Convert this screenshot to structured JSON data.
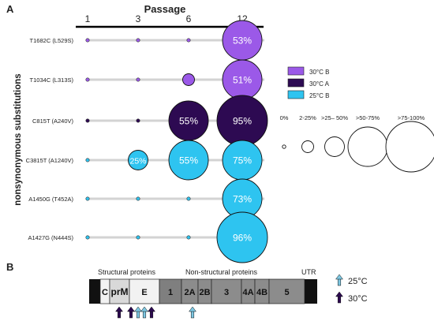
{
  "panel_a": {
    "label": "A",
    "axis_title": "Passage",
    "passages": [
      "1",
      "3",
      "6",
      "12"
    ],
    "y_axis_title": "nonsynonymous substitutions",
    "rows": [
      {
        "label": "T1682C (L529S)",
        "cells": [
          {
            "passage": "1",
            "bin": "0%",
            "group": "30°C B"
          },
          {
            "passage": "3",
            "bin": "0%",
            "group": "30°C B"
          },
          {
            "passage": "6",
            "bin": "0%",
            "group": "30°C B"
          },
          {
            "passage": "12",
            "bin": ">50-75%",
            "group": "30°C B",
            "value": "53%"
          }
        ]
      },
      {
        "label": "T1034C (L313S)",
        "cells": [
          {
            "passage": "1",
            "bin": "0%",
            "group": "30°C B"
          },
          {
            "passage": "3",
            "bin": "0%",
            "group": "30°C B"
          },
          {
            "passage": "6",
            "bin": "2-25%",
            "group": "30°C B"
          },
          {
            "passage": "12",
            "bin": ">50-75%",
            "group": "30°C B",
            "value": "51%"
          }
        ]
      },
      {
        "label": "C815T (A240V)",
        "cells": [
          {
            "passage": "1",
            "bin": "0%",
            "group": "30°C A"
          },
          {
            "passage": "3",
            "bin": "0%",
            "group": "30°C A"
          },
          {
            "passage": "6",
            "bin": ">50-75%",
            "group": "30°C A",
            "value": "55%"
          },
          {
            "passage": "12",
            "bin": ">75-100%",
            "group": "30°C A",
            "value": "95%"
          }
        ]
      },
      {
        "label": "C3815T (A1240V)",
        "cells": [
          {
            "passage": "1",
            "bin": "0%",
            "group": "25°C B"
          },
          {
            "passage": "3",
            "bin": ">25– 50%",
            "group": "25°C B",
            "value": "25%"
          },
          {
            "passage": "6",
            "bin": ">50-75%",
            "group": "25°C B",
            "value": "55%"
          },
          {
            "passage": "12",
            "bin": ">50-75%",
            "group": "25°C B",
            "value": "75%"
          }
        ]
      },
      {
        "label": "A1450G (T452A)",
        "cells": [
          {
            "passage": "1",
            "bin": "0%",
            "group": "25°C B"
          },
          {
            "passage": "3",
            "bin": "0%",
            "group": "25°C B"
          },
          {
            "passage": "6",
            "bin": "0%",
            "group": "25°C B"
          },
          {
            "passage": "12",
            "bin": ">50-75%",
            "group": "25°C B",
            "value": "73%"
          }
        ]
      },
      {
        "label": "A1427G (N444S)",
        "cells": [
          {
            "passage": "1",
            "bin": "0%",
            "group": "25°C B"
          },
          {
            "passage": "3",
            "bin": "0%",
            "group": "25°C B"
          },
          {
            "passage": "6",
            "bin": "0%",
            "group": "25°C B"
          },
          {
            "passage": "12",
            "bin": ">75-100%",
            "group": "25°C B",
            "value": "96%"
          }
        ]
      }
    ],
    "legend_groups": [
      {
        "name": "30°C B",
        "color": "#9b59e8"
      },
      {
        "name": "30°C A",
        "color": "#2d0a52"
      },
      {
        "name": "25°C B",
        "color": "#2ec4f0"
      }
    ],
    "size_bins": [
      "0%",
      "2-25%",
      ">25– 50%",
      ">50-75%",
      ">75-100%"
    ]
  },
  "panel_b": {
    "label": "B",
    "section_labels": {
      "structural": "Structural proteins",
      "nonstructural": "Non-structural proteins",
      "utr": "UTR"
    },
    "segments": [
      "C",
      "prM",
      "E",
      "1",
      "2A",
      "2B",
      "3",
      "4A",
      "4B",
      "5"
    ],
    "arrow_legend": [
      {
        "label": "25°C",
        "color": "#7ec8e3"
      },
      {
        "label": "30°C",
        "color": "#2d0a52"
      }
    ]
  }
}
